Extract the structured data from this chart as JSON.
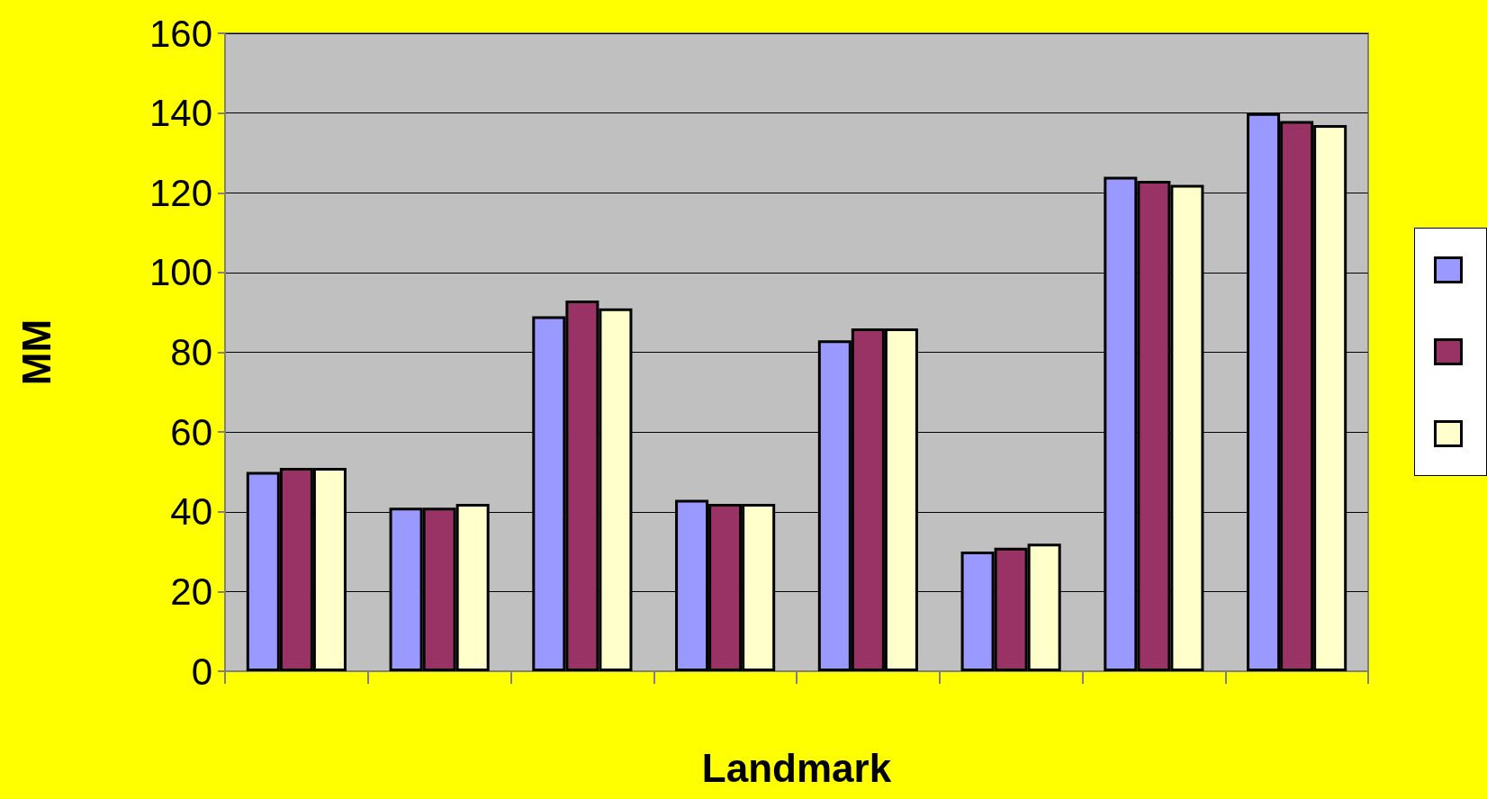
{
  "chart_data": {
    "type": "bar",
    "xlabel": "Landmark",
    "ylabel": "MM",
    "categories": [
      null,
      null,
      null,
      null,
      null,
      null,
      null,
      null
    ],
    "series": [
      {
        "color": "#9999ff",
        "values": [
          50,
          41,
          89,
          43,
          83,
          30,
          124,
          140
        ]
      },
      {
        "color": "#993366",
        "values": [
          51,
          41,
          93,
          42,
          86,
          31,
          123,
          138
        ]
      },
      {
        "color": "#ffffcc",
        "values": [
          51,
          42,
          91,
          42,
          86,
          32,
          122,
          137
        ]
      }
    ],
    "ylim": [
      0,
      160
    ],
    "yticks": [
      0,
      20,
      40,
      60,
      80,
      100,
      120,
      140,
      160
    ],
    "grid": "y"
  }
}
